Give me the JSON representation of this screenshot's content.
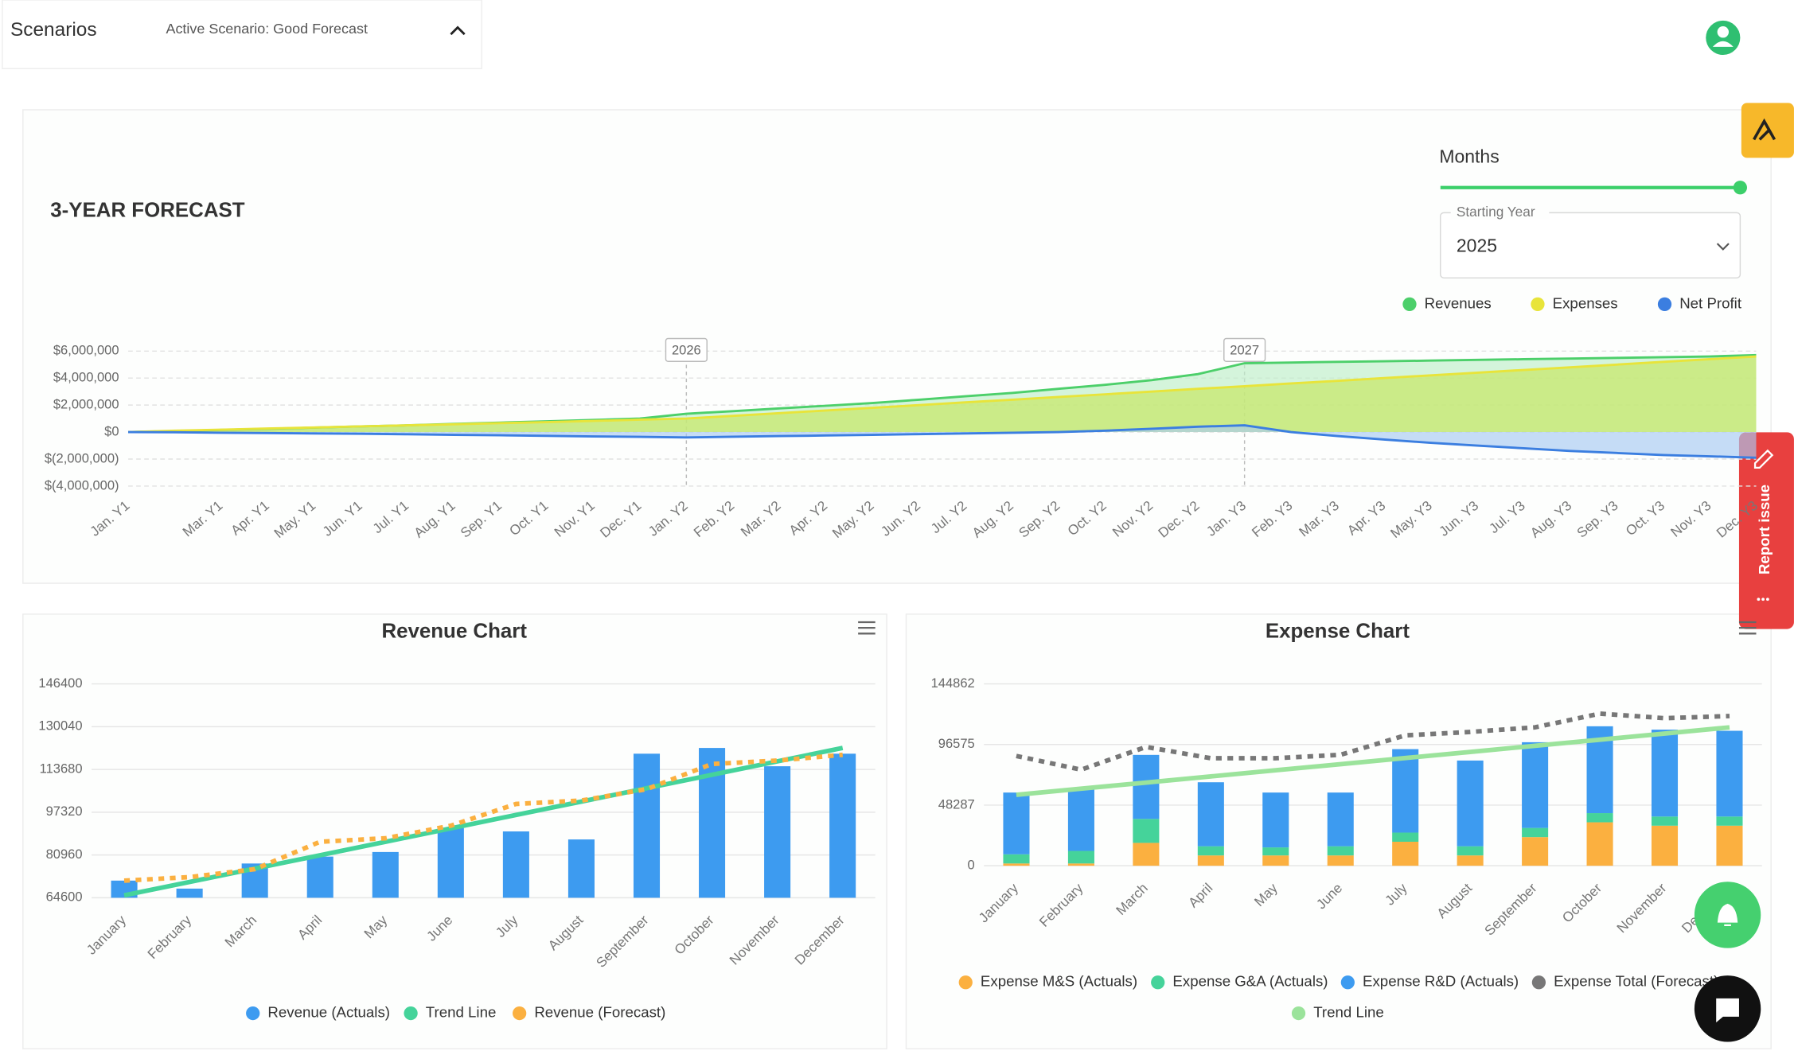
{
  "header": {
    "title": "Scenarios",
    "scenario": "Active Scenario: Good Forecast"
  },
  "page_title": "3-YEAR FORECAST",
  "controls": {
    "period": "Months",
    "year_label": "Starting Year",
    "year": "2025"
  },
  "widgets": {
    "report": "Report issue"
  },
  "chart_data": [
    {
      "type": "area",
      "categories": [
        "Jan. Y1",
        null,
        "Mar. Y1",
        "Apr. Y1",
        "May. Y1",
        "Jun. Y1",
        "Jul. Y1",
        "Aug. Y1",
        "Sep. Y1",
        "Oct. Y1",
        "Nov. Y1",
        "Dec. Y1",
        "Jan. Y2",
        "Feb. Y2",
        "Mar. Y2",
        "Apr. Y2",
        "May. Y2",
        "Jun. Y2",
        "Jul. Y2",
        "Aug. Y2",
        "Sep. Y2",
        "Oct. Y2",
        "Nov. Y2",
        "Dec. Y2",
        "Jan. Y3",
        "Feb. Y3",
        "Mar. Y3",
        "Apr. Y3",
        "May. Y3",
        "Jun. Y3",
        "Jul. Y3",
        "Aug. Y3",
        "Sep. Y3",
        "Oct. Y3",
        "Nov. Y3",
        "Dec. Y3"
      ],
      "series": [
        {
          "name": "Revenues",
          "color": "#4ccf6a",
          "fill": "#bfeec9",
          "values": [
            0,
            80000,
            160000,
            250000,
            330000,
            420000,
            500000,
            600000,
            700000,
            800000,
            900000,
            1000000,
            1360000,
            1550000,
            1750000,
            1950000,
            2150000,
            2400000,
            2650000,
            2900000,
            3200000,
            3500000,
            3850000,
            4300000,
            5100000,
            5150000,
            5200000,
            5250000,
            5300000,
            5350000,
            5400000,
            5450000,
            5500000,
            5550000,
            5600000,
            5700000
          ]
        },
        {
          "name": "Expenses",
          "color": "#e8e43a",
          "fill": "#c6e65c",
          "values": [
            0,
            100000,
            180000,
            260000,
            340000,
            420000,
            500000,
            580000,
            660000,
            740000,
            820000,
            920000,
            1000000,
            1200000,
            1400000,
            1600000,
            1800000,
            2000000,
            2200000,
            2400000,
            2600000,
            2800000,
            3000000,
            3200000,
            3400000,
            3600000,
            3800000,
            4000000,
            4200000,
            4400000,
            4600000,
            4800000,
            5000000,
            5200000,
            5400000,
            5600000
          ]
        },
        {
          "name": "Net Profit",
          "color": "#3b7ee0",
          "fill": "#a8c9f3",
          "values": [
            0,
            -20000,
            -50000,
            -80000,
            -100000,
            -130000,
            -160000,
            -200000,
            -240000,
            -280000,
            -320000,
            -360000,
            -400000,
            -350000,
            -300000,
            -250000,
            -200000,
            -150000,
            -100000,
            -50000,
            0,
            100000,
            250000,
            400000,
            500000,
            0,
            -300000,
            -550000,
            -800000,
            -1000000,
            -1200000,
            -1400000,
            -1550000,
            -1700000,
            -1800000,
            -1900000
          ]
        }
      ],
      "annotations": [
        {
          "text": "2026",
          "at": "Jan. Y2"
        },
        {
          "text": "2027",
          "at": "Jan. Y3"
        }
      ],
      "ylim": [
        -4000000,
        6000000
      ],
      "yticks": [
        {
          "value": -4000000,
          "label": "$(4,000,000)"
        },
        {
          "value": -2000000,
          "label": "$(2,000,000)"
        },
        {
          "value": 0,
          "label": "$0"
        },
        {
          "value": 2000000,
          "label": "$2,000,000"
        },
        {
          "value": 4000000,
          "label": "$4,000,000"
        },
        {
          "value": 6000000,
          "label": "$6,000,000"
        }
      ],
      "grid": true,
      "legend": "top-right"
    },
    {
      "type": "combo",
      "title": "Revenue Chart",
      "categories": [
        "January",
        "February",
        "March",
        "April",
        "May",
        "June",
        "July",
        "August",
        "September",
        "October",
        "November",
        "December"
      ],
      "series": [
        {
          "name": "Revenue (Actuals)",
          "type": "bar",
          "color": "#3d9bf0",
          "values": [
            71160,
            68100,
            77700,
            80350,
            82100,
            91280,
            89970,
            86900,
            119700,
            121900,
            114900,
            119700
          ]
        },
        {
          "name": "Trend Line",
          "type": "line",
          "color": "#45d39a",
          "values": [
            65500,
            70630,
            75750,
            80880,
            86010,
            91140,
            96260,
            101390,
            106520,
            111640,
            116770,
            121900
          ]
        },
        {
          "name": "Revenue (Forecast)",
          "type": "line",
          "dash": true,
          "color": "#fbb040",
          "values": [
            71160,
            72470,
            75540,
            86040,
            87350,
            92160,
            100470,
            101780,
            106160,
            115780,
            117090,
            119280
          ]
        }
      ],
      "ylim": [
        64600,
        146400
      ],
      "yticks": [
        64600,
        80960,
        97320,
        113680,
        130040,
        146400
      ],
      "grid": true,
      "legend": "bottom"
    },
    {
      "type": "stacked_combo",
      "title": "Expense Chart",
      "categories": [
        "January",
        "February",
        "March",
        "April",
        "May",
        "June",
        "July",
        "August",
        "September",
        "October",
        "November",
        "December"
      ],
      "series": [
        {
          "name": "Expense M&S (Actuals)",
          "type": "bar",
          "color": "#fbb040",
          "values": [
            1800,
            1800,
            18200,
            8200,
            8200,
            8200,
            19100,
            8200,
            22800,
            34600,
            31900,
            31900
          ]
        },
        {
          "name": "Expense G&A (Actuals)",
          "type": "bar",
          "color": "#45d39a",
          "values": [
            7300,
            10000,
            19100,
            7300,
            6400,
            7300,
            7300,
            7300,
            7300,
            7300,
            7300,
            7300
          ]
        },
        {
          "name": "Expense R&D (Actuals)",
          "type": "bar",
          "color": "#3d9bf0",
          "values": [
            49200,
            49200,
            51000,
            51000,
            43700,
            42800,
            66500,
            68300,
            68300,
            69200,
            69200,
            68300
          ]
        },
        {
          "name": "Expense Total (Forecast)",
          "type": "line",
          "dash": true,
          "color": "#777777",
          "values": [
            87500,
            76500,
            94700,
            85600,
            85600,
            88400,
            103900,
            106600,
            110200,
            121200,
            117500,
            119300
          ]
        },
        {
          "name": "Trend Line",
          "type": "line",
          "color": "#9be39b",
          "values": [
            56500,
            61380,
            66260,
            71150,
            76030,
            80910,
            85790,
            90670,
            95560,
            100440,
            105320,
            110200
          ]
        }
      ],
      "ylim": [
        0,
        144862
      ],
      "yticks": [
        0,
        48287,
        96575,
        144862
      ],
      "grid": true,
      "legend": "bottom"
    }
  ]
}
